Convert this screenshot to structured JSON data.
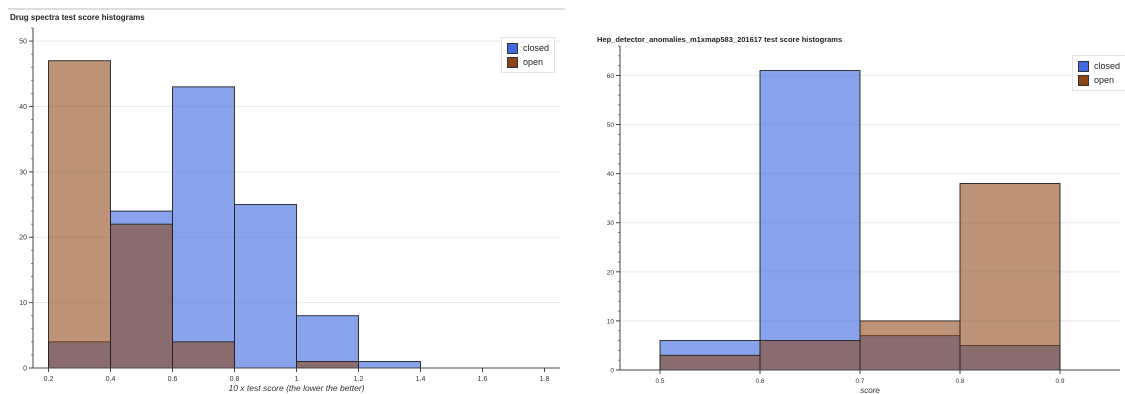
{
  "chart_data": [
    {
      "type": "bar",
      "title": "Drug spectra test score histograms",
      "xlabel": "10 x test score (the lower the better)",
      "ylabel": "",
      "xlim": [
        0.15,
        1.85
      ],
      "ylim": [
        0,
        52
      ],
      "xticks": [
        "0.2",
        "0.4",
        "0.6",
        "0.8",
        "1",
        "1.2",
        "1.4",
        "1.6",
        "1.8"
      ],
      "yticks": [
        "0",
        "10",
        "20",
        "30",
        "40",
        "50"
      ],
      "bin_edges": [
        0.2,
        0.4,
        0.6,
        0.8,
        1.0,
        1.2,
        1.4
      ],
      "series": [
        {
          "name": "closed",
          "color": "#4169e1",
          "values": [
            4,
            24,
            43,
            25,
            8,
            1
          ]
        },
        {
          "name": "open",
          "color": "#8b4513",
          "values": [
            47,
            22,
            4,
            0,
            1,
            0
          ]
        }
      ],
      "legend_position": "top-right",
      "grid": true
    },
    {
      "type": "bar",
      "title": "Hep_detector_anomalies_m1xmap583_201617 test score histograms",
      "xlabel": "score",
      "ylabel": "",
      "xlim": [
        0.46,
        0.96
      ],
      "ylim": [
        0,
        66
      ],
      "xticks": [
        "0.5",
        "0.6",
        "0.7",
        "0.8",
        "0.9"
      ],
      "yticks": [
        "0",
        "10",
        "20",
        "30",
        "40",
        "50",
        "60"
      ],
      "bin_edges": [
        0.5,
        0.6,
        0.7,
        0.8,
        0.9
      ],
      "series": [
        {
          "name": "closed",
          "color": "#4169e1",
          "values": [
            6,
            61,
            7,
            5
          ]
        },
        {
          "name": "open",
          "color": "#8b4513",
          "values": [
            3,
            6,
            10,
            38
          ]
        }
      ],
      "legend_position": "top-right",
      "grid": true
    }
  ]
}
